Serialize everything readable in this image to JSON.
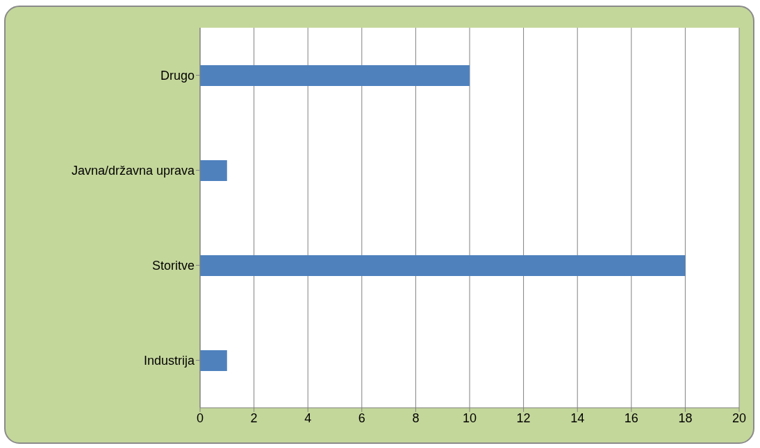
{
  "chart_data": {
    "type": "bar",
    "orientation": "horizontal",
    "categories": [
      "Drugo",
      "Javna/državna uprava",
      "Storitve",
      "Industrija"
    ],
    "values": [
      10,
      1,
      18,
      1
    ],
    "color": "#4f81bd",
    "xlim": [
      0,
      20
    ],
    "xticks": [
      0,
      2,
      4,
      6,
      8,
      10,
      12,
      14,
      16,
      18,
      20
    ],
    "grid": "x"
  }
}
